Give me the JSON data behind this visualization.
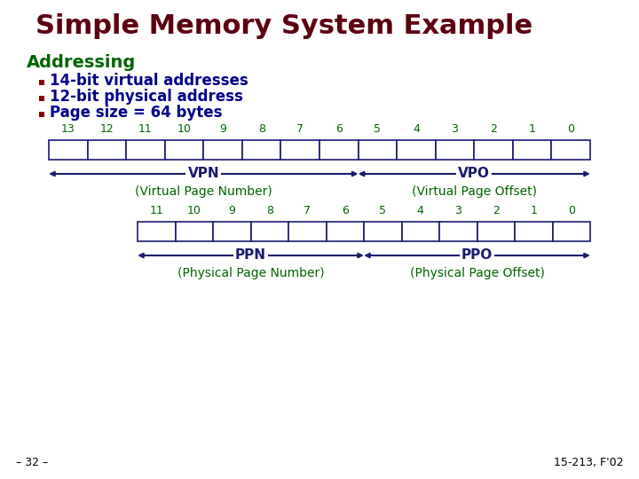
{
  "title": "Simple Memory System Example",
  "title_color": "#5C0010",
  "title_fontsize": 22,
  "bg_color": "#FFFFFF",
  "section_label": "Addressing",
  "section_color": "#006400",
  "section_fontsize": 14,
  "bullets": [
    "14-bit virtual addresses",
    "12-bit physical address",
    "Page size = 64 bytes"
  ],
  "bullet_color": "#00008B",
  "bullet_fontsize": 12,
  "bullet_square_color": "#8B0000",
  "va_bits": [
    13,
    12,
    11,
    10,
    9,
    8,
    7,
    6,
    5,
    4,
    3,
    2,
    1,
    0
  ],
  "pa_bits": [
    11,
    10,
    9,
    8,
    7,
    6,
    5,
    4,
    3,
    2,
    1,
    0
  ],
  "box_edge_color": "#1A1A6E",
  "box_fill_color": "#FFFFFF",
  "arrow_color": "#1A1A6E",
  "vpn_label": "VPN",
  "vpo_label": "VPO",
  "vpn_full": "(Virtual Page Number)",
  "vpo_full": "(Virtual Page Offset)",
  "ppn_label": "PPN",
  "ppo_label": "PPO",
  "ppn_full": "(Physical Page Number)",
  "ppo_full": "(Physical Page Offset)",
  "label_color": "#1A1A6E",
  "label_fontsize": 11,
  "sublabel_color": "#006400",
  "sublabel_fontsize": 10,
  "bit_label_color": "#006400",
  "bit_label_fontsize": 9,
  "footer_left": "– 32 –",
  "footer_right": "15-213, F'02",
  "footer_color": "#000000",
  "footer_fontsize": 9
}
